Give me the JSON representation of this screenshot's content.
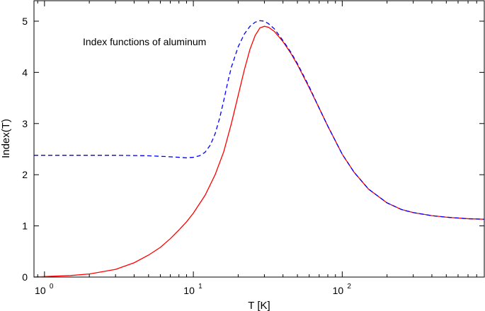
{
  "chart_data": {
    "type": "line",
    "title": "",
    "annotation": "Index functions of aluminum",
    "xlabel": "T [K]",
    "ylabel": "Index(T)",
    "xscale": "log",
    "xlim": [
      0.85,
      900
    ],
    "ylim": [
      0,
      5.4
    ],
    "grid": false,
    "legend": "none",
    "x_ticks": [
      {
        "value": 1,
        "base": "10",
        "exp": "0"
      },
      {
        "value": 10,
        "base": "10",
        "exp": "1"
      },
      {
        "value": 100,
        "base": "10",
        "exp": "2"
      }
    ],
    "y_ticks": [
      {
        "value": 0,
        "label": "0"
      },
      {
        "value": 1,
        "label": "1"
      },
      {
        "value": 2,
        "label": "2"
      },
      {
        "value": 3,
        "label": "3"
      },
      {
        "value": 4,
        "label": "4"
      },
      {
        "value": 5,
        "label": "5"
      }
    ],
    "series": [
      {
        "style": "solid",
        "color": "#ff0000",
        "x": [
          0.85,
          1.0,
          1.5,
          2.0,
          3.0,
          4.0,
          5.0,
          6.0,
          7.0,
          8.0,
          9.0,
          10,
          12,
          14,
          16,
          18,
          20,
          22,
          24,
          26,
          28,
          30,
          32,
          35,
          40,
          45,
          50,
          60,
          70,
          80,
          100,
          120,
          150,
          200,
          250,
          300,
          400,
          500,
          700,
          900
        ],
        "y": [
          0.0,
          0.01,
          0.03,
          0.06,
          0.15,
          0.28,
          0.43,
          0.58,
          0.75,
          0.92,
          1.08,
          1.25,
          1.6,
          2.0,
          2.45,
          3.0,
          3.55,
          4.05,
          4.45,
          4.72,
          4.87,
          4.9,
          4.88,
          4.8,
          4.6,
          4.38,
          4.15,
          3.7,
          3.3,
          2.95,
          2.4,
          2.05,
          1.72,
          1.45,
          1.32,
          1.26,
          1.2,
          1.17,
          1.14,
          1.13
        ]
      },
      {
        "style": "dashed",
        "color": "#0000ff",
        "x": [
          0.85,
          1.0,
          2.0,
          3.0,
          5.0,
          7.0,
          8.0,
          9.0,
          10,
          11,
          12,
          13,
          14,
          15,
          16,
          17,
          18,
          20,
          22,
          24,
          26,
          28,
          30,
          32,
          35,
          40,
          45,
          50,
          60,
          70,
          80,
          100,
          120,
          150,
          200,
          250,
          300,
          400,
          500,
          700,
          900
        ],
        "y": [
          2.38,
          2.38,
          2.38,
          2.38,
          2.37,
          2.35,
          2.34,
          2.33,
          2.34,
          2.37,
          2.44,
          2.58,
          2.8,
          3.1,
          3.45,
          3.8,
          4.1,
          4.5,
          4.75,
          4.9,
          4.98,
          5.01,
          5.0,
          4.95,
          4.85,
          4.62,
          4.4,
          4.17,
          3.72,
          3.3,
          2.95,
          2.4,
          2.05,
          1.72,
          1.45,
          1.32,
          1.26,
          1.2,
          1.17,
          1.14,
          1.13
        ]
      }
    ]
  }
}
